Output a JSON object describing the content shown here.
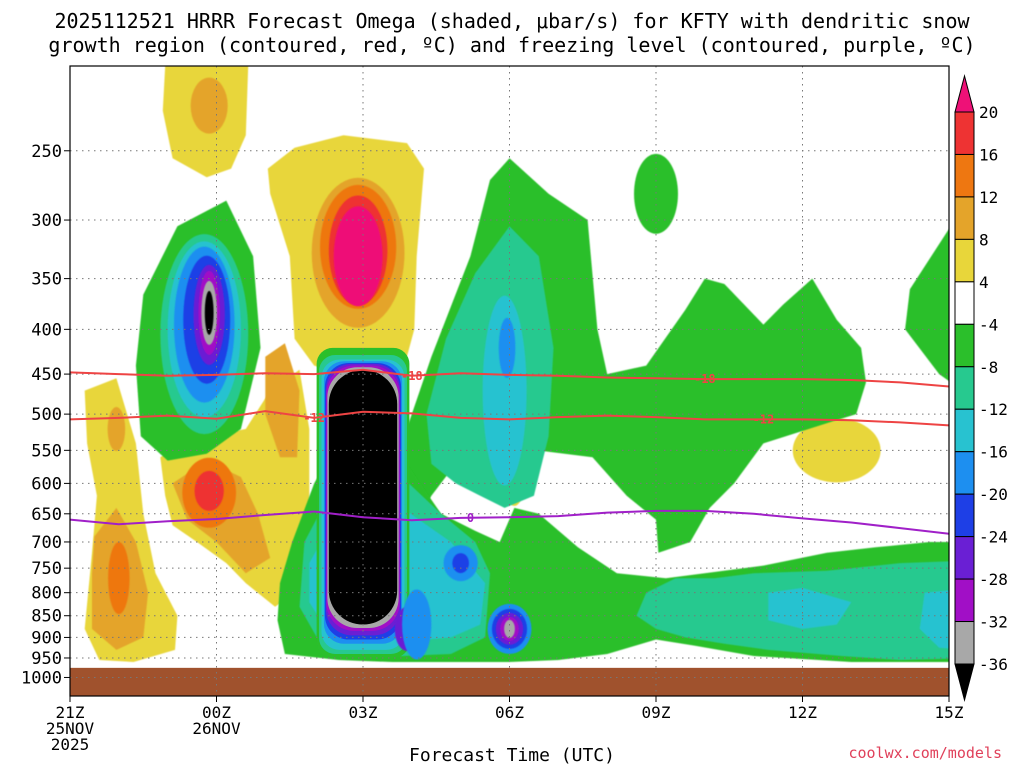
{
  "title_line1": "2025112521 HRRR Forecast Omega (shaded, μbar/s) for KFTY with dendritic snow",
  "title_line2": "growth region (contoured, red, ºC) and freezing level (contoured, purple, ºC)",
  "watermark": "coolwx.com/models",
  "chart_data": {
    "type": "heatmap",
    "title": "2025112521 HRRR Forecast Omega (shaded, μbar/s) for KFTY with dendritic snow growth region (contoured, red, ºC) and freezing level (contoured, purple, ºC)",
    "xlabel": "Forecast Time (UTC)",
    "ylabel": "",
    "x_range_hours": [
      0,
      18
    ],
    "x_ticks": [
      {
        "hour": 0,
        "lines": [
          "21Z",
          "25NOV",
          "2025"
        ]
      },
      {
        "hour": 3,
        "lines": [
          "00Z",
          "26NOV"
        ]
      },
      {
        "hour": 6,
        "lines": [
          "03Z"
        ]
      },
      {
        "hour": 9,
        "lines": [
          "06Z"
        ]
      },
      {
        "hour": 12,
        "lines": [
          "09Z"
        ]
      },
      {
        "hour": 15,
        "lines": [
          "12Z"
        ]
      },
      {
        "hour": 18,
        "lines": [
          "15Z"
        ]
      }
    ],
    "y_ticks": [
      "250",
      "300",
      "350",
      "400",
      "450",
      "500",
      "550",
      "600",
      "650",
      "700",
      "750",
      "800",
      "850",
      "900",
      "950",
      "1000"
    ],
    "y_scale": "log-pressure (hPa), inverted",
    "y_range_hpa": [
      200,
      1050
    ],
    "grid": true,
    "colorbar": {
      "labels": [
        "20",
        "16",
        "12",
        "8",
        "4",
        "-4",
        "-8",
        "-12",
        "-16",
        "-20",
        "-24",
        "-28",
        "-32",
        "-36"
      ],
      "colors": [
        "#ee1177",
        "#ee3333",
        "#ee7711",
        "#e4a42a",
        "#e8d63a",
        "#ffffff",
        "#2bbf2b",
        "#27c98f",
        "#28c2d0",
        "#1d8ff0",
        "#1e3fe6",
        "#6a1fd4",
        "#a10fc6",
        "#a8a8a8",
        "#000000"
      ]
    },
    "omega_features": [
      {
        "desc": "upper ascent maximum",
        "x_hour": 2.8,
        "pressure": 380,
        "min_value": -36
      },
      {
        "desc": "main ascent column",
        "x_hour": [
          5.1,
          6.8
        ],
        "pressure": [
          430,
          880
        ],
        "min_value": -36
      },
      {
        "desc": "lower ascent core",
        "x_hour": 8.9,
        "pressure": 880,
        "min_value": -32
      },
      {
        "desc": "upper descent core",
        "x_hour": 6.0,
        "pressure": 320,
        "max_value": 20
      },
      {
        "desc": "descent core",
        "x_hour": 2.8,
        "pressure": 610,
        "max_value": 16
      },
      {
        "desc": "low-level descent",
        "x_hour": 1.0,
        "pressure": 770,
        "max_value": 12
      }
    ],
    "contours": [
      {
        "name": "-18",
        "color": "#ee4444",
        "label": "-18",
        "x": [
          0,
          1,
          2,
          3,
          4,
          5,
          6,
          7,
          8,
          9,
          10,
          11,
          12,
          13,
          14,
          15,
          16,
          17,
          18
        ],
        "pressure": [
          448,
          450,
          452,
          451,
          449,
          450,
          445,
          452,
          449,
          451,
          452,
          454,
          455,
          456,
          456,
          456,
          457,
          460,
          465
        ]
      },
      {
        "name": "-12",
        "color": "#ee4444",
        "label": "-12",
        "x": [
          0,
          1,
          2,
          3,
          4,
          5,
          6,
          7,
          8,
          9,
          10,
          11,
          12,
          13,
          14,
          15,
          16,
          17,
          18
        ],
        "pressure": [
          507,
          505,
          502,
          506,
          496,
          505,
          497,
          499,
          505,
          507,
          504,
          502,
          504,
          507,
          507,
          507,
          508,
          511,
          515
        ]
      },
      {
        "name": "0",
        "color": "#a020c8",
        "label": "0",
        "x": [
          0,
          1,
          2,
          3,
          4,
          5,
          6,
          7,
          8,
          9,
          10,
          11,
          12,
          13,
          14,
          15,
          16,
          17,
          18
        ],
        "pressure": [
          660,
          668,
          663,
          659,
          652,
          646,
          656,
          661,
          657,
          656,
          654,
          648,
          645,
          645,
          650,
          658,
          665,
          675,
          685
        ]
      }
    ],
    "surface_fill": {
      "color": "#a0522d",
      "pressure_from": 975
    }
  }
}
